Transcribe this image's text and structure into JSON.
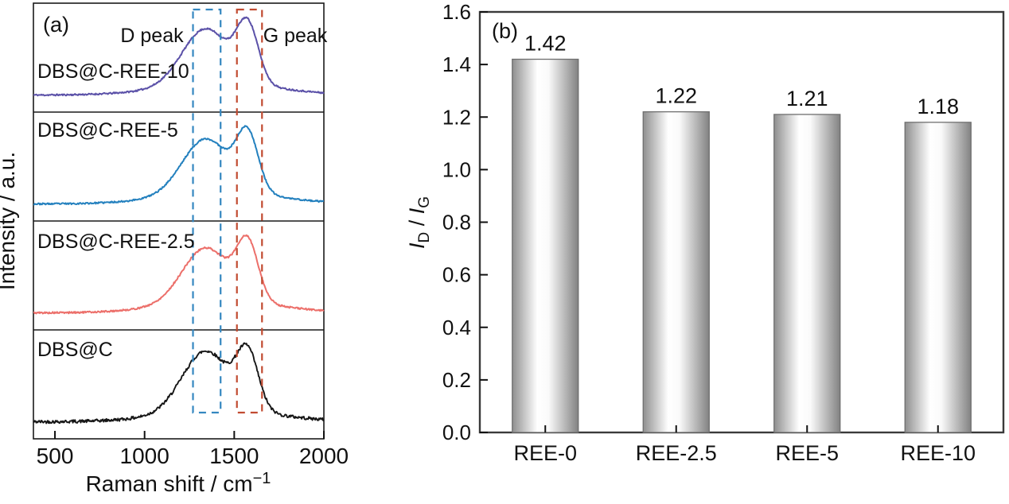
{
  "figure": {
    "background": "#ffffff"
  },
  "chart_data": [
    {
      "type": "line",
      "panel_tag": "(a)",
      "xlabel_base": "Raman shift / cm",
      "xlabel_sup": "−1",
      "ylabel": "Intensity / a.u.",
      "x_range": [
        380,
        2000
      ],
      "x_ticks": [
        500,
        1000,
        1500,
        2000
      ],
      "annotations": {
        "d_peak": "D peak",
        "g_peak": "G peak"
      },
      "highlight_boxes": [
        {
          "name": "d-band",
          "x1": 1270,
          "x2": 1424,
          "color": "#3487C0"
        },
        {
          "name": "g-band",
          "x1": 1515,
          "x2": 1655,
          "color": "#C14B31"
        }
      ],
      "peak_model": {
        "d_center": 1340,
        "d_sigma": 130,
        "g_center": 1575,
        "g_sigma": 60,
        "base_center": 1430,
        "base_sigma": 320,
        "base_amp": 0.2,
        "offset": 0.02
      },
      "series": [
        {
          "label": "DBS@C-REE-10",
          "color": "#5B51A8",
          "d_amp": 1.0,
          "g_amp": 1.0,
          "noise": 0.01,
          "seed": 11
        },
        {
          "label": "DBS@C-REE-5",
          "color": "#2380BE",
          "d_amp": 0.97,
          "g_amp": 1.0,
          "noise": 0.01,
          "seed": 23
        },
        {
          "label": "DBS@C-REE-2.5",
          "color": "#EC6F6A",
          "d_amp": 0.97,
          "g_amp": 1.0,
          "noise": 0.011,
          "seed": 5
        },
        {
          "label": "DBS@C",
          "color": "#161616",
          "d_amp": 1.1,
          "g_amp": 1.0,
          "noise": 0.02,
          "seed": 42
        }
      ]
    },
    {
      "type": "bar",
      "panel_tag": "(b)",
      "categories": [
        "REE-0",
        "REE-2.5",
        "REE-5",
        "REE-10"
      ],
      "values": [
        1.42,
        1.22,
        1.21,
        1.18
      ],
      "value_labels": [
        "1.42",
        "1.22",
        "1.21",
        "1.18"
      ],
      "ylim": [
        0,
        1.6
      ],
      "ytick_step": 0.2,
      "ylabel_parts": {
        "i1": "I",
        "s1": "D",
        "sep": " / ",
        "i2": "I",
        "s2": "G"
      },
      "bar_gradient": [
        {
          "o": 0.0,
          "c": "#8f8f8f"
        },
        {
          "o": 0.38,
          "c": "#ffffff"
        },
        {
          "o": 0.55,
          "c": "#fafafa"
        },
        {
          "o": 1.0,
          "c": "#828282"
        }
      ],
      "bar_stroke": "#6f6f6f"
    }
  ]
}
